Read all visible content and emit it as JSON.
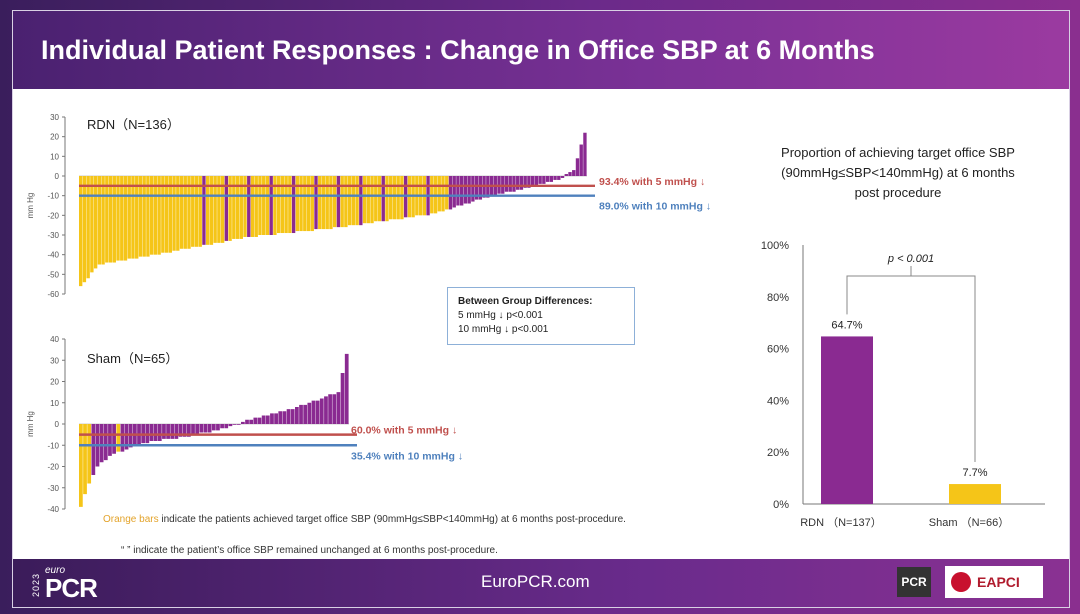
{
  "title": "Individual Patient Responses : Change in Office SBP at 6 Months",
  "footer": {
    "url": "EuroPCR.com",
    "year": "2023",
    "euro": "euro",
    "pcr": "PCR",
    "pcr_badge": "PCR",
    "eapci": "EAPCI"
  },
  "colors": {
    "rdn_purple": "#8a2a91",
    "target_orange": "#f5c518",
    "line_red": "#c0504d",
    "line_blue": "#4f81bd",
    "title_bar": "#6b2a8a"
  },
  "diff_box": {
    "heading": "Between Group Differences:",
    "line1": "5 mmHg ↓  p<0.001",
    "line2": "10 mmHg ↓  p<0.001"
  },
  "note": {
    "orange_part": "Orange bars",
    "rest": " indicate the patients achieved target office SBP (90mmHg≤SBP<140mmHg) at 6 months post-procedure.",
    "line2": "“ ” indicate the patient’s office SBP remained unchanged at 6 months post-procedure."
  },
  "chart_data": [
    {
      "type": "bar",
      "label": "RDN（N=136）",
      "ylabel": "mm Hg",
      "ylim": [
        -60,
        30
      ],
      "yticks": [
        30,
        20,
        10,
        0,
        -10,
        -20,
        -30,
        -40,
        -50,
        -60
      ],
      "n": 136,
      "profile_points": [
        [
          0,
          -56
        ],
        [
          5,
          -45
        ],
        [
          20,
          -40
        ],
        [
          45,
          -31
        ],
        [
          70,
          -26
        ],
        [
          95,
          -19
        ],
        [
          110,
          -10
        ],
        [
          120,
          -6
        ],
        [
          128,
          -2
        ],
        [
          132,
          3
        ],
        [
          135,
          22
        ]
      ],
      "thresholds": [
        {
          "value": -5,
          "label": "93.4% with 5 mmHg ↓",
          "color": "#c0504d"
        },
        {
          "value": -10,
          "label": "89.0% with 10 mmHg ↓",
          "color": "#4f81bd"
        }
      ],
      "series": [
        {
          "name": "Orange bars",
          "color": "#f5c518"
        },
        {
          "name": "",
          "color": "#8a2a91"
        }
      ]
    },
    {
      "type": "bar",
      "label": "Sham（N=65）",
      "ylabel": "mm Hg",
      "ylim": [
        -40,
        40
      ],
      "yticks": [
        40,
        30,
        20,
        10,
        0,
        -10,
        -20,
        -30,
        -40
      ],
      "n": 65,
      "profile_points": [
        [
          0,
          -39
        ],
        [
          2,
          -28
        ],
        [
          4,
          -20
        ],
        [
          8,
          -14
        ],
        [
          15,
          -9
        ],
        [
          25,
          -6
        ],
        [
          35,
          -2
        ],
        [
          40,
          2
        ],
        [
          45,
          4
        ],
        [
          52,
          8
        ],
        [
          58,
          12
        ],
        [
          62,
          15
        ],
        [
          64,
          33
        ]
      ],
      "thresholds": [
        {
          "value": -5,
          "label": "60.0% with 5 mmHg ↓",
          "color": "#c0504d"
        },
        {
          "value": -10,
          "label": "35.4% with 10 mmHg ↓",
          "color": "#4f81bd"
        }
      ],
      "series": [
        {
          "name": "Orange bars",
          "color": "#f5c518"
        },
        {
          "name": "",
          "color": "#8a2a91"
        }
      ]
    },
    {
      "type": "bar",
      "title": "Proportion of achieving target office SBP (90mmHg≤SBP<140mmHg) at 6 months post procedure",
      "title_lines": [
        "Proportion of achieving target office SBP",
        "(90mmHg≤SBP<140mmHg) at 6 months",
        "post procedure"
      ],
      "categories": [
        "RDN （N=137）",
        "Sham （N=66）"
      ],
      "values": [
        64.7,
        7.7
      ],
      "value_labels": [
        "64.7%",
        "7.7%"
      ],
      "colors": [
        "#8a2a91",
        "#f5c518"
      ],
      "ylim": [
        0,
        100
      ],
      "yticks": [
        "0%",
        "20%",
        "40%",
        "60%",
        "80%",
        "100%"
      ],
      "annotation": "p < 0.001"
    }
  ]
}
